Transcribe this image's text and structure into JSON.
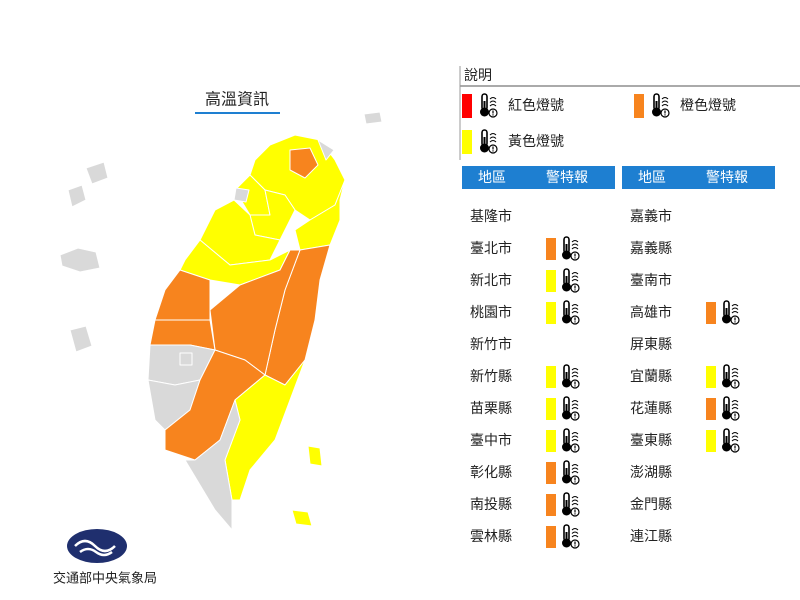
{
  "map": {
    "title": "高溫資訊",
    "agency": "交通部中央氣象局"
  },
  "legend": {
    "title": "說明",
    "items": [
      {
        "label": "紅色燈號",
        "color": "#ff0000"
      },
      {
        "label": "橙色燈號",
        "color": "#f7841e"
      },
      {
        "label": "黃色燈號",
        "color": "#ffff00"
      }
    ]
  },
  "table": {
    "headers": [
      "地區",
      "警特報"
    ],
    "columns": [
      [
        {
          "region": "基隆市"
        },
        {
          "region": "臺北市",
          "color": "#f7841e"
        },
        {
          "region": "新北市",
          "color": "#ffff00"
        },
        {
          "region": "桃園市",
          "color": "#ffff00"
        },
        {
          "region": "新竹市"
        },
        {
          "region": "新竹縣",
          "color": "#ffff00"
        },
        {
          "region": "苗栗縣",
          "color": "#ffff00"
        },
        {
          "region": "臺中市",
          "color": "#ffff00"
        },
        {
          "region": "彰化縣",
          "color": "#f7841e"
        },
        {
          "region": "南投縣",
          "color": "#f7841e"
        },
        {
          "region": "雲林縣",
          "color": "#f7841e"
        }
      ],
      [
        {
          "region": "嘉義市"
        },
        {
          "region": "嘉義縣"
        },
        {
          "region": "臺南市"
        },
        {
          "region": "高雄市",
          "color": "#f7841e"
        },
        {
          "region": "屏東縣"
        },
        {
          "region": "宜蘭縣",
          "color": "#ffff00"
        },
        {
          "region": "花蓮縣",
          "color": "#f7841e"
        },
        {
          "region": "臺東縣",
          "color": "#ffff00"
        },
        {
          "region": "澎湖縣"
        },
        {
          "region": "金門縣"
        },
        {
          "region": "連江縣"
        }
      ]
    ]
  }
}
